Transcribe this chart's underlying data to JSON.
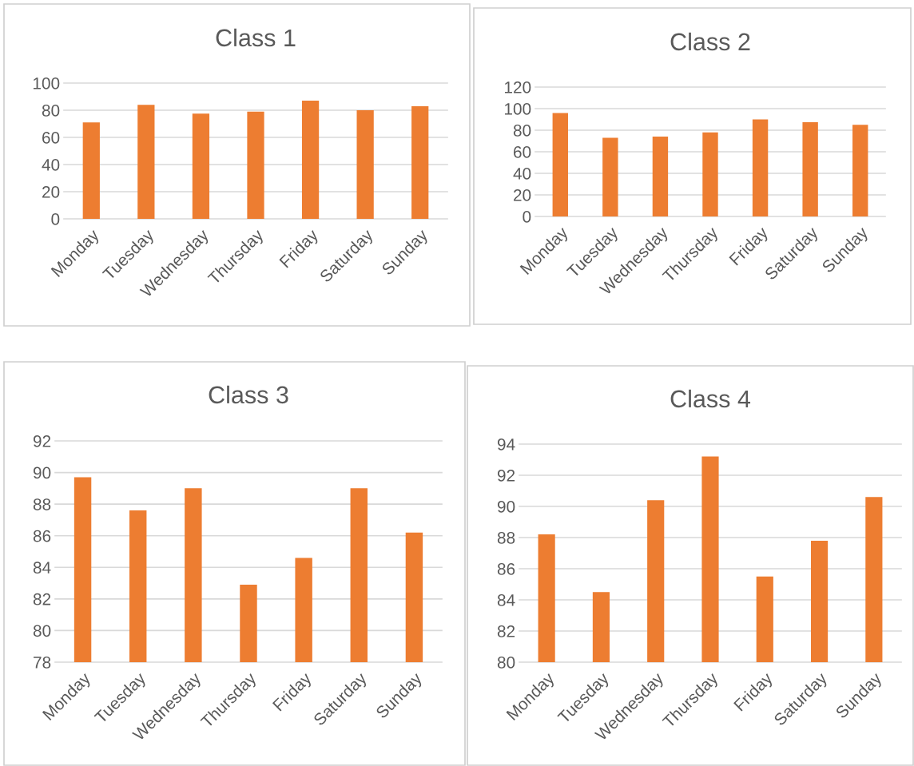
{
  "chart_data": [
    {
      "type": "bar",
      "title": "Class 1",
      "categories": [
        "Monday",
        "Tuesday",
        "Wednesday",
        "Thursday",
        "Friday",
        "Saturday",
        "Sunday"
      ],
      "values": [
        71,
        84,
        77.5,
        79,
        87,
        80,
        83
      ],
      "color": "#ed7d31",
      "ylim": [
        0,
        100
      ],
      "yticks": [
        0,
        20,
        40,
        60,
        80,
        100
      ],
      "grid": "y"
    },
    {
      "type": "bar",
      "title": "Class 2",
      "categories": [
        "Monday",
        "Tuesday",
        "Wednesday",
        "Thursday",
        "Friday",
        "Saturday",
        "Sunday"
      ],
      "values": [
        96,
        73,
        74,
        78,
        90,
        87.5,
        85
      ],
      "color": "#ed7d31",
      "ylim": [
        0,
        120
      ],
      "yticks": [
        0,
        20,
        40,
        60,
        80,
        100,
        120
      ],
      "grid": "y"
    },
    {
      "type": "bar",
      "title": "Class 3",
      "categories": [
        "Monday",
        "Tuesday",
        "Wednesday",
        "Thursday",
        "Friday",
        "Saturday",
        "Sunday"
      ],
      "values": [
        89.7,
        87.6,
        89.0,
        82.9,
        84.6,
        89.0,
        86.2
      ],
      "color": "#ed7d31",
      "ylim": [
        78,
        92
      ],
      "yticks": [
        78,
        80,
        82,
        84,
        86,
        88,
        90,
        92
      ],
      "grid": "y"
    },
    {
      "type": "bar",
      "title": "Class 4",
      "categories": [
        "Monday",
        "Tuesday",
        "Wednesday",
        "Thursday",
        "Friday",
        "Saturday",
        "Sunday"
      ],
      "values": [
        88.2,
        84.5,
        90.4,
        93.2,
        85.5,
        87.8,
        90.6
      ],
      "color": "#ed7d31",
      "ylim": [
        80,
        94
      ],
      "yticks": [
        80,
        82,
        84,
        86,
        88,
        90,
        92,
        94
      ],
      "grid": "y"
    }
  ]
}
